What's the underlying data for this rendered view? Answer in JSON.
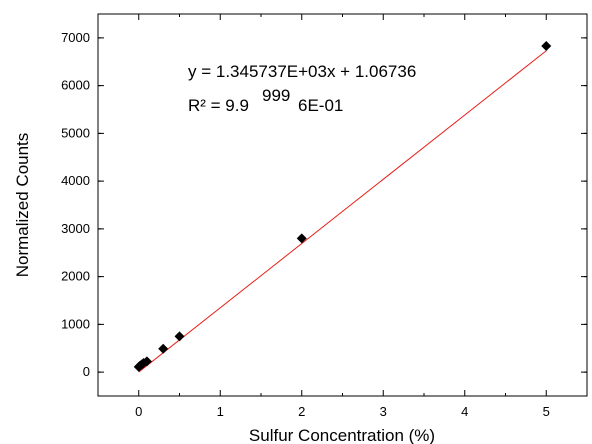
{
  "chart_data": {
    "type": "scatter",
    "title": "",
    "xlabel": "Sulfur Concentration (%)",
    "ylabel": "Normalized Counts",
    "xlim": [
      -0.5,
      5.5
    ],
    "ylim": [
      -500,
      7500
    ],
    "xticks": [
      0,
      1,
      2,
      3,
      4,
      5
    ],
    "yticks": [
      0,
      1000,
      2000,
      3000,
      4000,
      5000,
      6000,
      7000
    ],
    "grid": false,
    "points": [
      {
        "x": 0.0,
        "y": 110
      },
      {
        "x": 0.01,
        "y": 125
      },
      {
        "x": 0.02,
        "y": 140
      },
      {
        "x": 0.04,
        "y": 165
      },
      {
        "x": 0.06,
        "y": 190
      },
      {
        "x": 0.1,
        "y": 225
      },
      {
        "x": 0.3,
        "y": 490
      },
      {
        "x": 0.5,
        "y": 750
      },
      {
        "x": 2.0,
        "y": 2800
      },
      {
        "x": 5.0,
        "y": 6830
      }
    ],
    "fit": {
      "slope": 1345.737,
      "intercept": 1.06736,
      "x_range": [
        0,
        5
      ]
    },
    "annotations": {
      "equation": "y = 1.345737E+03x + 1.06736",
      "r2_prefix": "R² = 9.9",
      "r2_superscript": "999",
      "r2_suffix": "6E-01"
    },
    "colors": {
      "fit_line": "#e8201a",
      "marker": "#000000",
      "axis": "#000000"
    }
  }
}
